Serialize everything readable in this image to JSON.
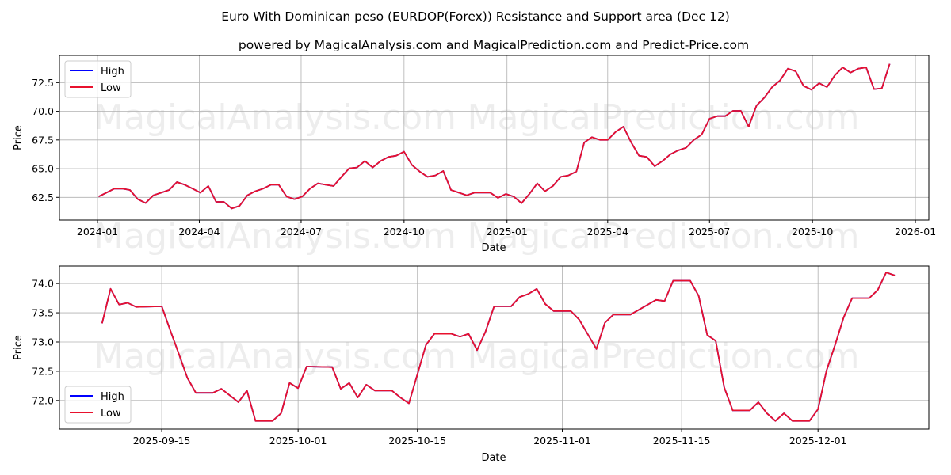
{
  "title": "Euro With Dominican peso (EURDOP(Forex)) Resistance and Support area (Dec 12)",
  "subtitle": "powered by MagicalAnalysis.com and MagicalPrediction.com and Predict-Price.com",
  "watermarks": [
    "MagicalAnalysis.com",
    "MagicalPrediction.com"
  ],
  "colors": {
    "high": "#0000ff",
    "low": "#e8112d",
    "grid": "#b0b0b0"
  },
  "chart_data": [
    {
      "type": "line",
      "xlabel": "Date",
      "ylabel": "Price",
      "grid": true,
      "legend": "top-left",
      "x_start": "2024-01-02",
      "x_step_days": 7,
      "xlim": [
        "2023-11-28",
        "2026-01-13"
      ],
      "ylim": [
        60.52,
        74.87
      ],
      "xticks": [
        {
          "date": "2024-01-01",
          "label": "2024-01"
        },
        {
          "date": "2024-04-01",
          "label": "2024-04"
        },
        {
          "date": "2024-07-01",
          "label": "2024-07"
        },
        {
          "date": "2024-10-01",
          "label": "2024-10"
        },
        {
          "date": "2025-01-01",
          "label": "2025-01"
        },
        {
          "date": "2025-04-01",
          "label": "2025-04"
        },
        {
          "date": "2025-07-01",
          "label": "2025-07"
        },
        {
          "date": "2025-10-01",
          "label": "2025-10"
        },
        {
          "date": "2026-01-01",
          "label": "2026-01"
        }
      ],
      "yticks": [
        {
          "value": 62.5,
          "label": "62.5"
        },
        {
          "value": 65.0,
          "label": "65.0"
        },
        {
          "value": 67.5,
          "label": "67.5"
        },
        {
          "value": 70.0,
          "label": "70.0"
        },
        {
          "value": 72.5,
          "label": "72.5"
        }
      ],
      "series": [
        {
          "name": "High",
          "values": [
            62.57,
            62.91,
            63.26,
            63.26,
            63.14,
            62.34,
            62.0,
            62.68,
            62.91,
            63.14,
            63.83,
            63.6,
            63.26,
            62.91,
            63.49,
            62.11,
            62.11,
            61.53,
            61.76,
            62.68,
            63.03,
            63.26,
            63.6,
            63.6,
            62.57,
            62.34,
            62.57,
            63.26,
            63.72,
            63.6,
            63.49,
            64.29,
            65.03,
            65.1,
            65.67,
            65.1,
            65.67,
            66.02,
            66.13,
            66.48,
            65.33,
            64.75,
            64.29,
            64.41,
            64.8,
            63.14,
            62.91,
            62.68,
            62.91,
            62.91,
            62.91,
            62.45,
            62.8,
            62.57,
            61.99,
            62.8,
            63.72,
            63.03,
            63.49,
            64.29,
            64.41,
            64.75,
            67.28,
            67.74,
            67.51,
            67.51,
            68.2,
            68.66,
            67.28,
            66.13,
            66.02,
            65.21,
            65.67,
            66.25,
            66.59,
            66.82,
            67.51,
            67.97,
            69.35,
            69.58,
            69.58,
            70.04,
            70.04,
            68.66,
            70.5,
            71.19,
            72.11,
            72.68,
            73.72,
            73.49,
            72.22,
            71.88,
            72.45,
            72.11,
            73.14,
            73.83,
            73.37,
            73.72,
            73.83,
            71.93,
            72.0,
            74.14
          ]
        },
        {
          "name": "Low",
          "values": [
            62.57,
            62.91,
            63.26,
            63.26,
            63.14,
            62.34,
            62.0,
            62.68,
            62.91,
            63.14,
            63.83,
            63.6,
            63.26,
            62.91,
            63.49,
            62.11,
            62.11,
            61.53,
            61.76,
            62.68,
            63.03,
            63.26,
            63.6,
            63.6,
            62.57,
            62.34,
            62.57,
            63.26,
            63.72,
            63.6,
            63.49,
            64.29,
            65.03,
            65.1,
            65.67,
            65.1,
            65.67,
            66.02,
            66.13,
            66.48,
            65.33,
            64.75,
            64.29,
            64.41,
            64.8,
            63.14,
            62.91,
            62.68,
            62.91,
            62.91,
            62.91,
            62.45,
            62.8,
            62.57,
            61.99,
            62.8,
            63.72,
            63.03,
            63.49,
            64.29,
            64.41,
            64.75,
            67.28,
            67.74,
            67.51,
            67.51,
            68.2,
            68.66,
            67.28,
            66.13,
            66.02,
            65.21,
            65.67,
            66.25,
            66.59,
            66.82,
            67.51,
            67.97,
            69.35,
            69.58,
            69.58,
            70.04,
            70.04,
            68.66,
            70.5,
            71.19,
            72.11,
            72.68,
            73.72,
            73.49,
            72.22,
            71.88,
            72.45,
            72.11,
            73.14,
            73.83,
            73.37,
            73.72,
            73.83,
            71.93,
            72.0,
            74.14
          ]
        }
      ]
    },
    {
      "type": "line",
      "xlabel": "Date",
      "ylabel": "Price",
      "grid": true,
      "legend": "bottom-left",
      "xlim": [
        "2025-09-03",
        "2025-12-14"
      ],
      "ylim": [
        71.51,
        74.3
      ],
      "xticks": [
        {
          "date": "2025-09-15",
          "label": "2025-09-15"
        },
        {
          "date": "2025-10-01",
          "label": "2025-10-01"
        },
        {
          "date": "2025-10-15",
          "label": "2025-10-15"
        },
        {
          "date": "2025-11-01",
          "label": "2025-11-01"
        },
        {
          "date": "2025-11-15",
          "label": "2025-11-15"
        },
        {
          "date": "2025-12-01",
          "label": "2025-12-01"
        }
      ],
      "yticks": [
        {
          "value": 72.0,
          "label": "72.0"
        },
        {
          "value": 72.5,
          "label": "72.5"
        },
        {
          "value": 73.0,
          "label": "73.0"
        },
        {
          "value": 73.5,
          "label": "73.5"
        },
        {
          "value": 74.0,
          "label": "74.0"
        }
      ],
      "x": [
        "2025-09-08",
        "2025-09-09",
        "2025-09-10",
        "2025-09-11",
        "2025-09-12",
        "2025-09-15",
        "2025-09-16",
        "2025-09-17",
        "2025-09-18",
        "2025-09-19",
        "2025-09-21",
        "2025-09-22",
        "2025-09-24",
        "2025-09-25",
        "2025-09-26",
        "2025-09-28",
        "2025-09-29",
        "2025-09-30",
        "2025-10-01",
        "2025-10-02",
        "2025-10-05",
        "2025-10-06",
        "2025-10-07",
        "2025-10-08",
        "2025-10-09",
        "2025-10-10",
        "2025-10-12",
        "2025-10-13",
        "2025-10-14",
        "2025-10-16",
        "2025-10-17",
        "2025-10-19",
        "2025-10-20",
        "2025-10-21",
        "2025-10-22",
        "2025-10-23",
        "2025-10-24",
        "2025-10-26",
        "2025-10-27",
        "2025-10-28",
        "2025-10-29",
        "2025-10-30",
        "2025-10-31",
        "2025-11-02",
        "2025-11-03",
        "2025-11-05",
        "2025-11-06",
        "2025-11-07",
        "2025-11-09",
        "2025-11-12",
        "2025-11-13",
        "2025-11-14",
        "2025-11-16",
        "2025-11-17",
        "2025-11-18",
        "2025-11-19",
        "2025-11-20",
        "2025-11-21",
        "2025-11-23",
        "2025-11-24",
        "2025-11-25",
        "2025-11-26",
        "2025-11-27",
        "2025-11-28",
        "2025-11-30",
        "2025-12-01",
        "2025-12-02",
        "2025-12-03",
        "2025-12-04",
        "2025-12-05",
        "2025-12-07",
        "2025-12-08",
        "2025-12-09",
        "2025-12-10"
      ],
      "series": [
        {
          "name": "High",
          "values": [
            73.32,
            73.91,
            73.64,
            73.67,
            73.6,
            73.61,
            73.2,
            72.8,
            72.39,
            72.13,
            72.13,
            72.2,
            71.97,
            72.17,
            71.65,
            71.65,
            71.78,
            72.3,
            72.21,
            72.58,
            72.57,
            72.2,
            72.3,
            72.05,
            72.27,
            72.17,
            72.17,
            72.05,
            71.95,
            72.95,
            73.14,
            73.14,
            73.09,
            73.14,
            72.86,
            73.18,
            73.61,
            73.61,
            73.77,
            73.82,
            73.91,
            73.65,
            73.53,
            73.53,
            73.38,
            72.88,
            73.33,
            73.47,
            73.47,
            73.72,
            73.7,
            74.05,
            74.05,
            73.79,
            73.12,
            73.02,
            72.22,
            71.83,
            71.83,
            71.97,
            71.78,
            71.65,
            71.78,
            71.65,
            71.65,
            71.85,
            72.51,
            72.95,
            73.42,
            73.75,
            73.75,
            73.89,
            74.19,
            74.14
          ]
        },
        {
          "name": "Low",
          "values": [
            73.32,
            73.91,
            73.64,
            73.67,
            73.6,
            73.61,
            73.2,
            72.8,
            72.39,
            72.13,
            72.13,
            72.2,
            71.97,
            72.17,
            71.65,
            71.65,
            71.78,
            72.3,
            72.21,
            72.58,
            72.57,
            72.2,
            72.3,
            72.05,
            72.27,
            72.17,
            72.17,
            72.05,
            71.95,
            72.95,
            73.14,
            73.14,
            73.09,
            73.14,
            72.86,
            73.18,
            73.61,
            73.61,
            73.77,
            73.82,
            73.91,
            73.65,
            73.53,
            73.53,
            73.38,
            72.88,
            73.33,
            73.47,
            73.47,
            73.72,
            73.7,
            74.05,
            74.05,
            73.79,
            73.12,
            73.02,
            72.22,
            71.83,
            71.83,
            71.97,
            71.78,
            71.65,
            71.78,
            71.65,
            71.65,
            71.85,
            72.51,
            72.95,
            73.42,
            73.75,
            73.75,
            73.89,
            74.19,
            74.14
          ]
        }
      ]
    }
  ]
}
